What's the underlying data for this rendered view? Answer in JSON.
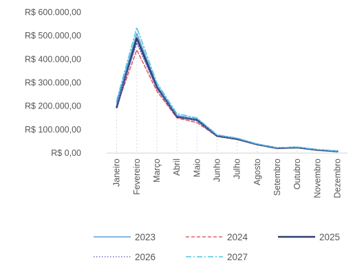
{
  "chart_data": {
    "type": "line",
    "title": "",
    "xlabel": "",
    "ylabel": "",
    "categories": [
      "Janeiro",
      "Fevereiro",
      "Março",
      "Abril",
      "Maio",
      "Junho",
      "Julho",
      "Agosto",
      "Setembro",
      "Outubro",
      "Novembro",
      "Dezembro"
    ],
    "y_tick_labels": [
      "R$ 0,00",
      "R$ 100.000,00",
      "R$ 200.000,00",
      "R$ 300.000,00",
      "R$ 400.000,00",
      "R$ 500.000,00",
      "R$ 600.000,00"
    ],
    "y_ticks": [
      0,
      100000,
      200000,
      300000,
      400000,
      500000,
      600000
    ],
    "ylim": [
      0,
      600000
    ],
    "grid": false,
    "legend_position": "bottom",
    "series": [
      {
        "name": "2023",
        "color": "#5b9bd5",
        "dash": "solid",
        "values": [
          215000,
          510000,
          290000,
          160000,
          145000,
          75000,
          62000,
          38000,
          22000,
          25000,
          14000,
          8000
        ]
      },
      {
        "name": "2024",
        "color": "#e06060",
        "dash": "dashed",
        "values": [
          200000,
          440000,
          265000,
          150000,
          130000,
          72000,
          58000,
          36000,
          20000,
          23000,
          13000,
          7000
        ]
      },
      {
        "name": "2025",
        "color": "#2e3d6e",
        "dash": "solid-thick",
        "values": [
          195000,
          490000,
          280000,
          155000,
          140000,
          73000,
          60000,
          37000,
          21000,
          24000,
          13500,
          7500
        ]
      },
      {
        "name": "2026",
        "color": "#6b6bc8",
        "dash": "dotted",
        "values": [
          205000,
          470000,
          275000,
          158000,
          138000,
          74000,
          61000,
          37500,
          21500,
          24500,
          14000,
          8000
        ]
      },
      {
        "name": "2027",
        "color": "#4fc6e0",
        "dash": "dash-dot",
        "values": [
          225000,
          535000,
          300000,
          168000,
          150000,
          78000,
          64000,
          39000,
          23000,
          26000,
          15000,
          9000
        ]
      }
    ]
  }
}
